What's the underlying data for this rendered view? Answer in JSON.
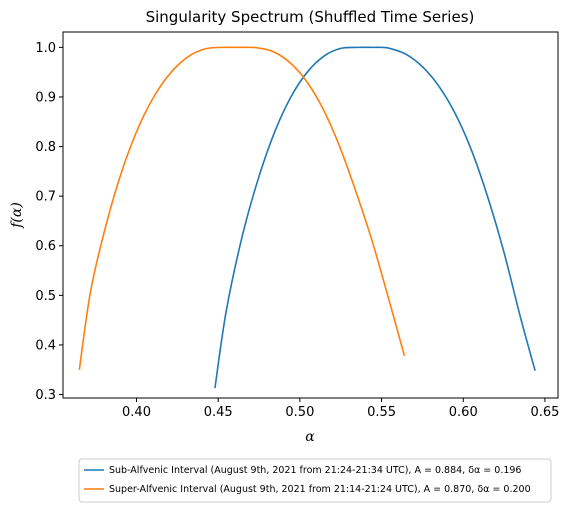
{
  "chart_data": {
    "type": "line",
    "title": "Singularity Spectrum (Shuffled Time Series)",
    "xlabel": "α",
    "ylabel": "f(α)",
    "xlim": [
      0.355,
      0.658
    ],
    "ylim": [
      0.293,
      1.031
    ],
    "xticks": [
      0.4,
      0.45,
      0.5,
      0.55,
      0.6,
      0.65
    ],
    "xtick_labels": [
      "0.40",
      "0.45",
      "0.50",
      "0.55",
      "0.60",
      "0.65"
    ],
    "yticks": [
      0.3,
      0.4,
      0.5,
      0.6,
      0.7,
      0.8,
      0.9,
      1.0
    ],
    "ytick_labels": [
      "0.3",
      "0.4",
      "0.5",
      "0.6",
      "0.7",
      "0.8",
      "0.9",
      "1.0"
    ],
    "grid": false,
    "legend_position": "below",
    "series": [
      {
        "name": "Sub-Alfvenic Interval (August 9th, 2021 from 21:24-21:34 UTC), A = 0.884, δα = 0.196",
        "color": "#1f77b4",
        "x": [
          0.448,
          0.455,
          0.465,
          0.475,
          0.485,
          0.495,
          0.505,
          0.515,
          0.525,
          0.535,
          0.545,
          0.55,
          0.555,
          0.565,
          0.575,
          0.585,
          0.595,
          0.605,
          0.615,
          0.625,
          0.635,
          0.644
        ],
        "y": [
          0.313,
          0.47,
          0.623,
          0.74,
          0.833,
          0.903,
          0.952,
          0.983,
          0.998,
          1.0,
          1.0,
          1.0,
          0.998,
          0.986,
          0.961,
          0.922,
          0.867,
          0.793,
          0.698,
          0.586,
          0.456,
          0.348
        ]
      },
      {
        "name": "Super-Alfvenic Interval (August 9th, 2021 from 21:14-21:24 UTC), A = 0.870, δα = 0.200",
        "color": "#ff7f0e",
        "x": [
          0.365,
          0.372,
          0.382,
          0.392,
          0.402,
          0.412,
          0.422,
          0.432,
          0.442,
          0.452,
          0.462,
          0.468,
          0.474,
          0.484,
          0.494,
          0.504,
          0.514,
          0.524,
          0.534,
          0.544,
          0.554,
          0.564
        ],
        "y": [
          0.35,
          0.51,
          0.65,
          0.76,
          0.845,
          0.908,
          0.953,
          0.982,
          0.997,
          1.0,
          1.0,
          1.0,
          0.999,
          0.991,
          0.969,
          0.932,
          0.877,
          0.803,
          0.712,
          0.612,
          0.497,
          0.378
        ]
      }
    ]
  }
}
